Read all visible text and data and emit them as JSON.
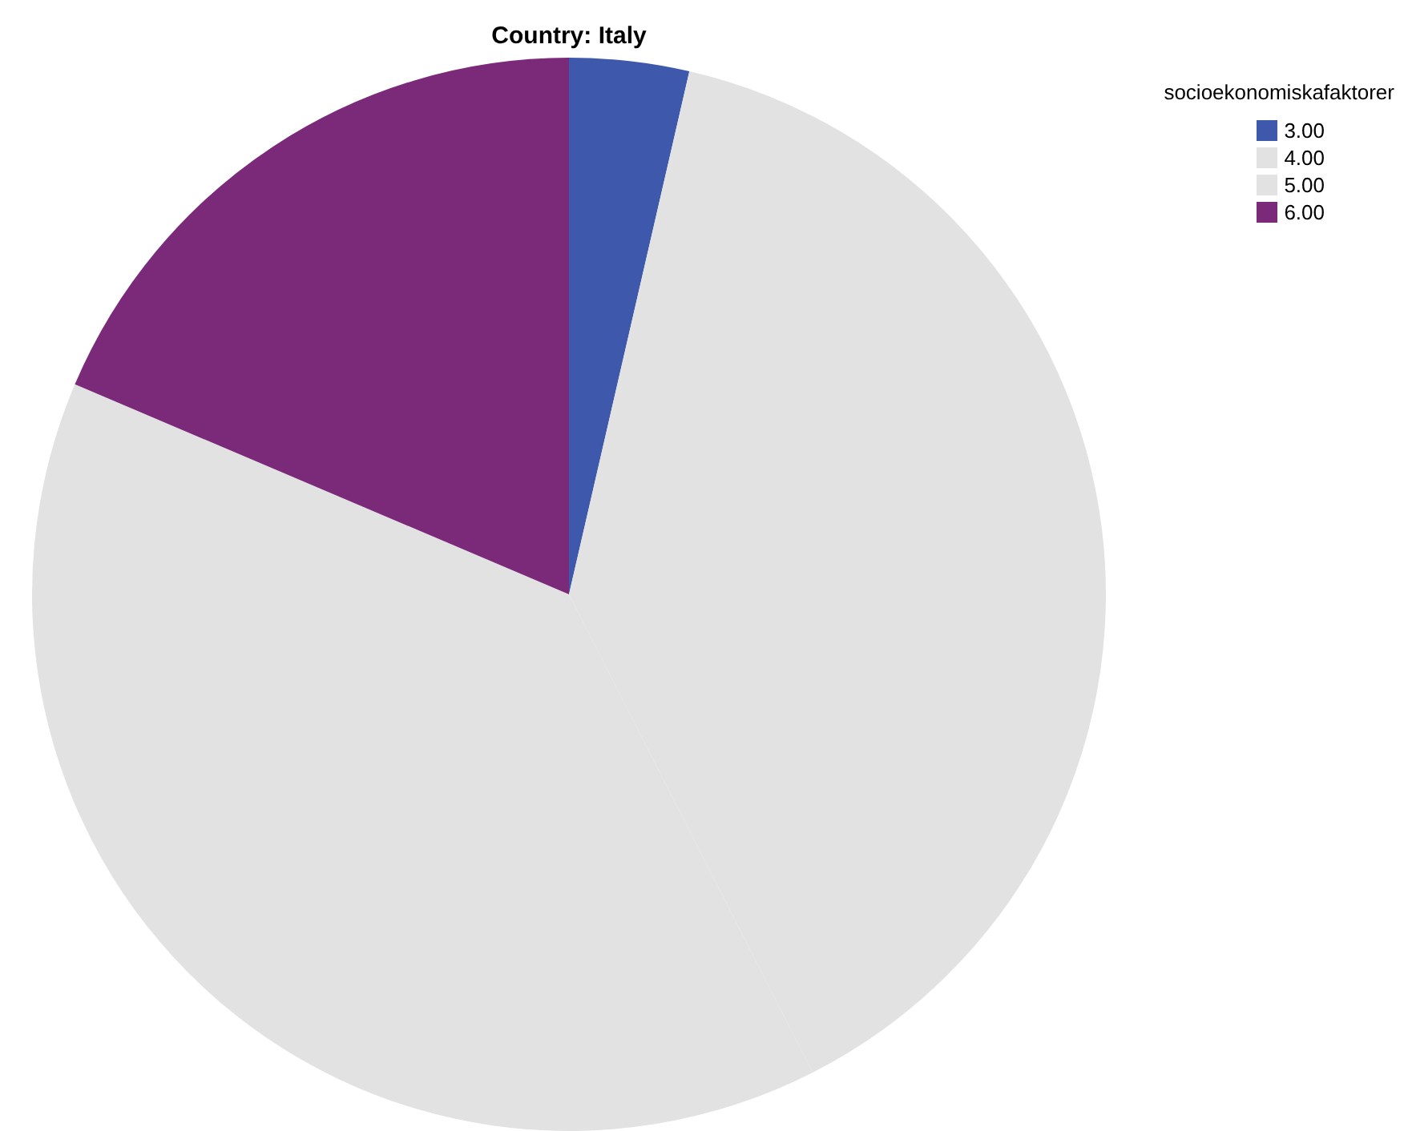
{
  "chart_data": {
    "type": "pie",
    "title": "Country: Italy",
    "legend_title": "socioekonomiskafaktorer",
    "legend": "top right",
    "categories": [
      "3.00",
      "4.00",
      "5.00",
      "6.00"
    ],
    "values": [
      3.6,
      38.9,
      38.9,
      18.6
    ],
    "colors": [
      "#3e59ab",
      "#e2e2e2",
      "#e2e2e2",
      "#7b2a7a"
    ]
  }
}
